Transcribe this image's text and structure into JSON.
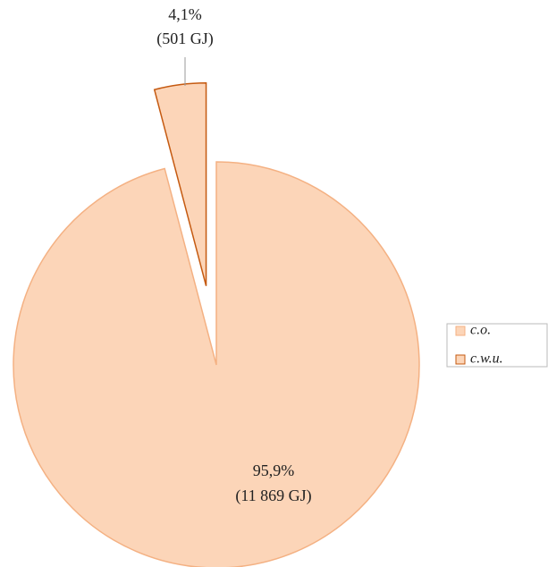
{
  "chart_data": {
    "type": "pie",
    "categories": [
      "c.o.",
      "c.w.u."
    ],
    "values": [
      95.9,
      4.1
    ],
    "value_labels": [
      "95,9%",
      "4,1%"
    ],
    "energy": [
      11869,
      501
    ],
    "energy_labels": [
      "(11 869 GJ)",
      "(501 GJ)"
    ],
    "colors": [
      "#fcd5b8",
      "#fcd5b8"
    ],
    "edge_colors": [
      "#f4b183",
      "#c55a11"
    ],
    "legend": "right"
  }
}
